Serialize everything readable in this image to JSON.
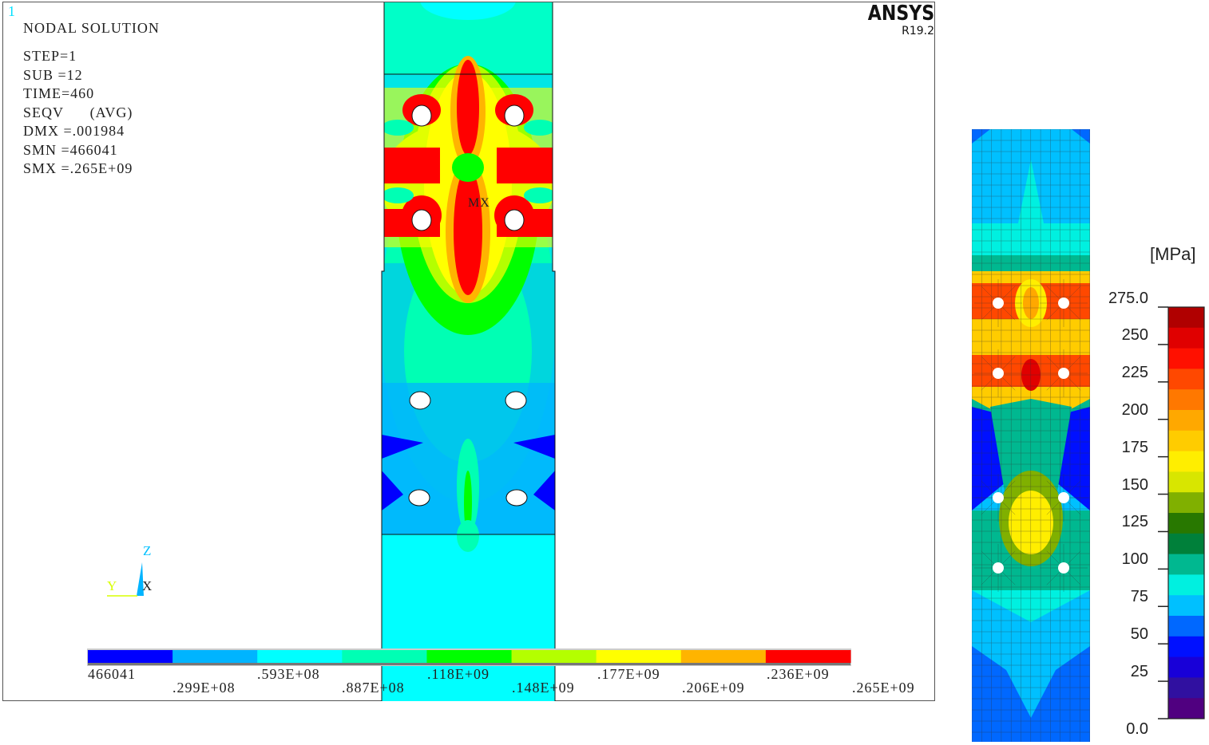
{
  "ansys_plot": {
    "window_number": "1",
    "brand": "ANSYS",
    "release": "R19.2",
    "title": "NODAL SOLUTION",
    "info_lines": [
      "STEP=1",
      "SUB =12",
      "TIME=460",
      "SEQV      (AVG)",
      "DMX =.001984",
      "SMN =466041",
      "SMX =.265E+09"
    ],
    "max_marker": "MX",
    "triad": {
      "z": "Z",
      "y": "Y",
      "x": "X"
    },
    "legend": {
      "colors": [
        "#0000ff",
        "#00b4ff",
        "#00ffff",
        "#00ffb4",
        "#00ff00",
        "#b4ff00",
        "#ffff00",
        "#ffb400",
        "#ff0000"
      ],
      "labels_top": [
        "466041",
        ".593E+08",
        ".118E+09",
        ".177E+09",
        ".236E+09"
      ],
      "labels_bottom": [
        ".299E+08",
        ".887E+08",
        ".148E+09",
        ".206E+09",
        ".265E+09"
      ]
    }
  },
  "comparison_plot": {
    "unit": "[MPa]",
    "ticks": [
      "275.0",
      "250",
      "225",
      "200",
      "175",
      "150",
      "125",
      "100",
      "75",
      "50",
      "25",
      "0.0"
    ],
    "colors": [
      "#b00000",
      "#e00000",
      "#ff1000",
      "#ff4800",
      "#ff7800",
      "#ffa800",
      "#ffcc00",
      "#ffee00",
      "#d8e600",
      "#80b000",
      "#287800",
      "#00803a",
      "#00b890",
      "#00f0e0",
      "#00c0ff",
      "#0068ff",
      "#0010ff",
      "#1800d8",
      "#3010a0",
      "#500080"
    ]
  }
}
